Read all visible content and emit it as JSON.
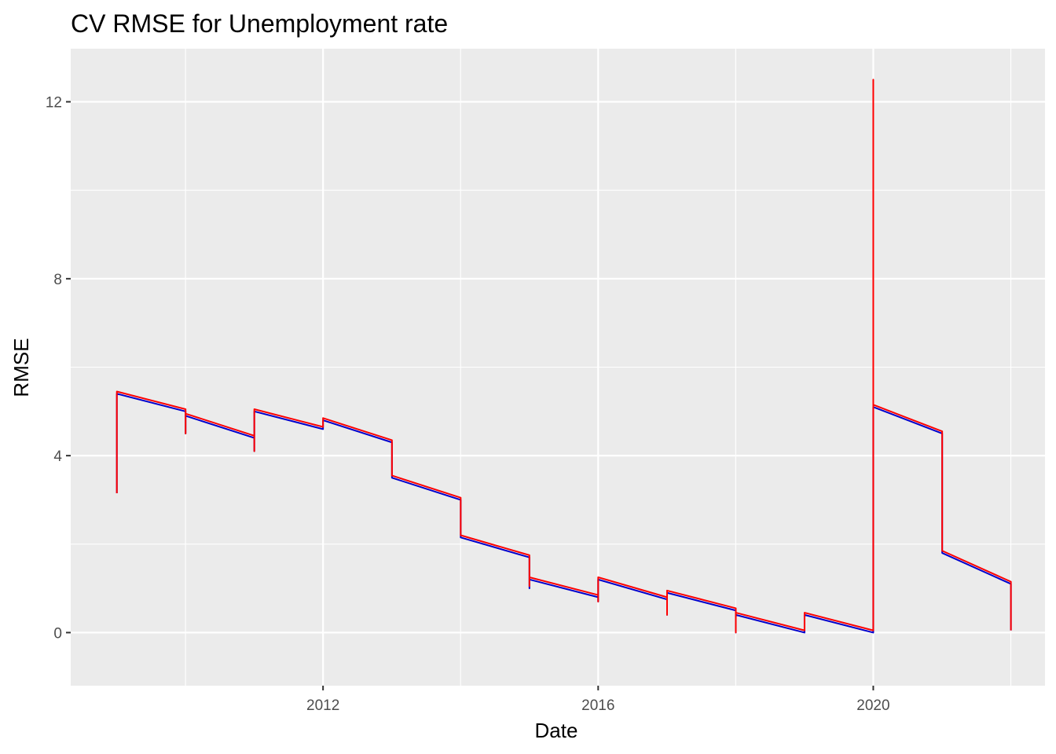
{
  "chart_data": {
    "type": "line",
    "title": "CV RMSE for Unemployment rate",
    "xlabel": "Date",
    "ylabel": "RMSE",
    "x_type": "date",
    "xlim": [
      "2008-05-01",
      "2022-07-01"
    ],
    "ylim": [
      -1.2,
      13.2
    ],
    "x_ticks": [
      {
        "value": "2012-01-01",
        "label": "2012"
      },
      {
        "value": "2016-01-01",
        "label": "2016"
      },
      {
        "value": "2020-01-01",
        "label": "2020"
      }
    ],
    "y_ticks": [
      {
        "value": 0,
        "label": "0"
      },
      {
        "value": 4,
        "label": "4"
      },
      {
        "value": 8,
        "label": "8"
      },
      {
        "value": 12,
        "label": "12"
      }
    ],
    "grid": true,
    "background": "#ebebeb",
    "series": [
      {
        "color": "#0000cc",
        "points": [
          [
            "2009-01-01",
            3.15
          ],
          [
            "2009-01-01",
            5.4
          ],
          [
            "2010-01-01",
            5.0
          ],
          [
            "2010-01-01",
            4.5
          ],
          [
            "2010-01-01",
            4.9
          ],
          [
            "2011-01-01",
            4.4
          ],
          [
            "2011-01-01",
            4.1
          ],
          [
            "2011-01-01",
            5.0
          ],
          [
            "2012-01-01",
            4.6
          ],
          [
            "2012-01-01",
            4.8
          ],
          [
            "2013-01-01",
            4.3
          ],
          [
            "2013-01-01",
            3.5
          ],
          [
            "2014-01-01",
            3.0
          ],
          [
            "2014-01-01",
            2.15
          ],
          [
            "2015-01-01",
            1.7
          ],
          [
            "2015-01-01",
            1.0
          ],
          [
            "2015-01-01",
            1.2
          ],
          [
            "2016-01-01",
            0.8
          ],
          [
            "2016-01-01",
            0.7
          ],
          [
            "2016-01-01",
            1.2
          ],
          [
            "2017-01-01",
            0.75
          ],
          [
            "2017-01-01",
            0.4
          ],
          [
            "2017-01-01",
            0.9
          ],
          [
            "2018-01-01",
            0.5
          ],
          [
            "2018-01-01",
            0.0
          ],
          [
            "2018-01-01",
            0.4
          ],
          [
            "2019-01-01",
            0.0
          ],
          [
            "2019-01-01",
            0.4
          ],
          [
            "2020-01-01",
            0.0
          ],
          [
            "2020-01-01",
            5.1
          ],
          [
            "2021-01-01",
            4.5
          ],
          [
            "2021-01-01",
            1.8
          ],
          [
            "2022-01-01",
            1.1
          ],
          [
            "2022-01-01",
            0.05
          ]
        ]
      },
      {
        "color": "#ff0000",
        "points": [
          [
            "2009-01-01",
            3.15
          ],
          [
            "2009-01-01",
            5.45
          ],
          [
            "2010-01-01",
            5.05
          ],
          [
            "2010-01-01",
            4.5
          ],
          [
            "2010-01-01",
            4.95
          ],
          [
            "2011-01-01",
            4.45
          ],
          [
            "2011-01-01",
            4.1
          ],
          [
            "2011-01-01",
            5.05
          ],
          [
            "2012-01-01",
            4.65
          ],
          [
            "2012-01-01",
            4.85
          ],
          [
            "2013-01-01",
            4.35
          ],
          [
            "2013-01-01",
            3.55
          ],
          [
            "2014-01-01",
            3.05
          ],
          [
            "2014-01-01",
            2.2
          ],
          [
            "2015-01-01",
            1.75
          ],
          [
            "2015-01-01",
            1.05
          ],
          [
            "2015-01-01",
            1.25
          ],
          [
            "2016-01-01",
            0.85
          ],
          [
            "2016-01-01",
            0.7
          ],
          [
            "2016-01-01",
            1.25
          ],
          [
            "2017-01-01",
            0.8
          ],
          [
            "2017-01-01",
            0.4
          ],
          [
            "2017-01-01",
            0.95
          ],
          [
            "2018-01-01",
            0.55
          ],
          [
            "2018-01-01",
            0.0
          ],
          [
            "2018-01-01",
            0.45
          ],
          [
            "2019-01-01",
            0.05
          ],
          [
            "2019-01-01",
            0.45
          ],
          [
            "2020-01-01",
            0.05
          ],
          [
            "2020-01-01",
            12.5
          ],
          [
            "2020-01-01",
            5.15
          ],
          [
            "2021-01-01",
            4.55
          ],
          [
            "2021-01-01",
            1.85
          ],
          [
            "2022-01-01",
            1.15
          ],
          [
            "2022-01-01",
            0.05
          ]
        ]
      }
    ]
  }
}
